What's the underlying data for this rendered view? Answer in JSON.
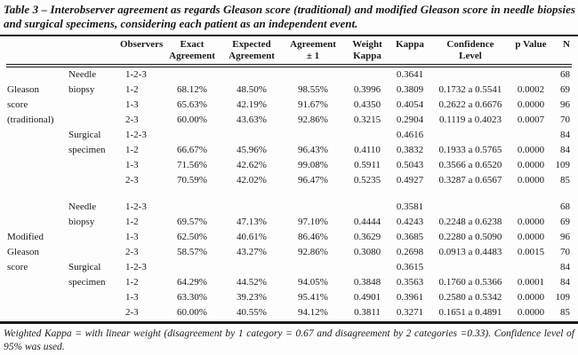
{
  "title": "Table 3 – Interobserver agreement as regards Gleason score (traditional) and modified Gleason score in needle biopsies and surgical specimens, considering each patient as an independent event.",
  "footnote": "Weighted Kappa = with linear weight (disagreement by 1 category = 0.67 and disagreement by 2 categories =0.33). Confidence level of 95% was used.",
  "table": {
    "headers": [
      "",
      "",
      "Observers",
      "Exact\nAgreement",
      "Expected\nAgreement",
      "Agreement\n± 1",
      "Weight\nKappa",
      "Kappa",
      "Confidence\nLevel",
      "p Value",
      "N"
    ],
    "col_names": [
      "score-type",
      "specimen-type",
      "observers",
      "exact-agreement",
      "expected-agreement",
      "agreement-plus-minus-1",
      "weight-kappa",
      "kappa",
      "confidence-level",
      "p-value",
      "n"
    ],
    "blocks": [
      {
        "group": "Gleason score (traditional)",
        "rows": [
          [
            "",
            "Needle",
            "1-2-3",
            "",
            "",
            "",
            "",
            "0.3641",
            "",
            "",
            "68"
          ],
          [
            "Gleason",
            "biopsy",
            "1-2",
            "68.12%",
            "48.50%",
            "98.55%",
            "0.3996",
            "0.3809",
            "0.1732 a 0.5541",
            "0.0002",
            "69"
          ],
          [
            "score",
            "",
            "1-3",
            "65.63%",
            "42.19%",
            "91.67%",
            "0.4350",
            "0.4054",
            "0.2622 a 0.6676",
            "0.0000",
            "96"
          ],
          [
            "(traditional)",
            "",
            "2-3",
            "60.00%",
            "43.63%",
            "92.86%",
            "0.3215",
            "0.2904",
            "0.1119 a 0.4023",
            "0.0007",
            "70"
          ],
          [
            "",
            "Surgical",
            "1-2-3",
            "",
            "",
            "",
            "",
            "0.4616",
            "",
            "",
            "84"
          ],
          [
            "",
            "specimen",
            "1-2",
            "66.67%",
            "45.96%",
            "96.43%",
            "0.4110",
            "0.3832",
            "0.1933 a 0.5765",
            "0.0000",
            "84"
          ],
          [
            "",
            "",
            "1-3",
            "71.56%",
            "42.62%",
            "99.08%",
            "0.5911",
            "0.5043",
            "0.3566 a 0.6520",
            "0.0000",
            "109"
          ],
          [
            "",
            "",
            "2-3",
            "70.59%",
            "42.02%",
            "96.47%",
            "0.5235",
            "0.4927",
            "0.3287 a 0.6567",
            "0.0000",
            "85"
          ]
        ]
      },
      {
        "group": "Modified Gleason score",
        "rows": [
          [
            "",
            "Needle",
            "1-2-3",
            "",
            "",
            "",
            "",
            "0.3581",
            "",
            "",
            "68"
          ],
          [
            "",
            "biopsy",
            "1-2",
            "69.57%",
            "47.13%",
            "97.10%",
            "0.4444",
            "0.4243",
            "0.2248 a 0.6238",
            "0.0000",
            "69"
          ],
          [
            "Modified",
            "",
            "1-3",
            "62.50%",
            "40.61%",
            "86.46%",
            "0.3629",
            "0.3685",
            "0.2280 a 0.5090",
            "0.0000",
            "96"
          ],
          [
            "Gleason",
            "",
            "2-3",
            "58.57%",
            "43.27%",
            "92.86%",
            "0.3080",
            "0.2698",
            "0.0913 a 0.4483",
            "0.0015",
            "70"
          ],
          [
            "score",
            "Surgical",
            "1-2-3",
            "",
            "",
            "",
            "",
            "0.3615",
            "",
            "",
            "84"
          ],
          [
            "",
            "specimen",
            "1-2",
            "64.29%",
            "44.52%",
            "94.05%",
            "0.3848",
            "0.3563",
            "0.1760 a 0.5366",
            "0.0001",
            "84"
          ],
          [
            "",
            "",
            "1-3",
            "63.30%",
            "39.23%",
            "95.41%",
            "0.4901",
            "0.3961",
            "0.2580 a 0.5342",
            "0.0000",
            "109"
          ],
          [
            "",
            "",
            "2-3",
            "60.00%",
            "40.55%",
            "94.12%",
            "0.3811",
            "0.3271",
            "0.1651 a 0.4891",
            "0.0000",
            "85"
          ]
        ]
      }
    ]
  }
}
